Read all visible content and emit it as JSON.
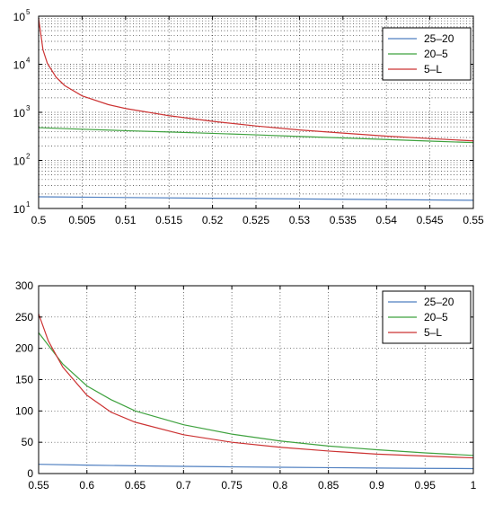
{
  "chart_data": [
    {
      "type": "line",
      "yscale": "log",
      "xlim": [
        0.5,
        0.55
      ],
      "ylim": [
        10,
        100000
      ],
      "grid": true,
      "grid_style": "dotted",
      "legend_position": "top-right",
      "x_ticks": [
        "0.5",
        "0.505",
        "0.51",
        "0.515",
        "0.52",
        "0.525",
        "0.53",
        "0.535",
        "0.54",
        "0.545",
        "0.55"
      ],
      "y_ticks": [
        {
          "value": 10,
          "base": "10",
          "exp": "1"
        },
        {
          "value": 100,
          "base": "10",
          "exp": "2"
        },
        {
          "value": 1000,
          "base": "10",
          "exp": "3"
        },
        {
          "value": 10000,
          "base": "10",
          "exp": "4"
        },
        {
          "value": 100000,
          "base": "10",
          "exp": "5"
        }
      ],
      "series": [
        {
          "name": "25–20",
          "color": "#4f7fc0",
          "x": [
            0.5,
            0.51,
            0.52,
            0.53,
            0.54,
            0.55
          ],
          "y": [
            17.5,
            16.9,
            16.3,
            15.8,
            15.3,
            14.8
          ]
        },
        {
          "name": "20–5",
          "color": "#3fa23f",
          "x": [
            0.5,
            0.505,
            0.51,
            0.515,
            0.52,
            0.525,
            0.53,
            0.535,
            0.54,
            0.545,
            0.55
          ],
          "y": [
            480,
            445,
            415,
            390,
            365,
            340,
            315,
            293,
            272,
            252,
            235
          ]
        },
        {
          "name": "5–L",
          "color": "#cc3333",
          "x": [
            0.5,
            0.5005,
            0.501,
            0.502,
            0.503,
            0.505,
            0.508,
            0.51,
            0.515,
            0.52,
            0.525,
            0.53,
            0.535,
            0.54,
            0.545,
            0.55
          ],
          "y": [
            90000,
            20000,
            10500,
            5400,
            3600,
            2200,
            1450,
            1200,
            850,
            650,
            520,
            430,
            370,
            320,
            285,
            255
          ]
        }
      ]
    },
    {
      "type": "line",
      "yscale": "linear",
      "xlim": [
        0.55,
        1
      ],
      "ylim": [
        0,
        300
      ],
      "grid": true,
      "grid_style": "dotted",
      "legend_position": "top-right",
      "x_ticks": [
        "0.55",
        "0.6",
        "0.65",
        "0.7",
        "0.75",
        "0.8",
        "0.85",
        "0.9",
        "0.95",
        "1"
      ],
      "y_ticks": [
        "0",
        "50",
        "100",
        "150",
        "200",
        "250",
        "300"
      ],
      "series": [
        {
          "name": "25–20",
          "color": "#4f7fc0",
          "x": [
            0.55,
            0.6,
            0.65,
            0.7,
            0.75,
            0.8,
            0.85,
            0.9,
            0.95,
            1.0
          ],
          "y": [
            14.8,
            13.5,
            12.4,
            11.5,
            10.7,
            10.0,
            9.4,
            8.8,
            8.3,
            7.9
          ]
        },
        {
          "name": "20–5",
          "color": "#3fa23f",
          "x": [
            0.55,
            0.575,
            0.6,
            0.625,
            0.65,
            0.7,
            0.75,
            0.8,
            0.85,
            0.9,
            0.95,
            1.0
          ],
          "y": [
            225,
            175,
            140,
            118,
            100,
            78,
            63,
            52,
            44,
            38,
            33,
            29
          ]
        },
        {
          "name": "5–L",
          "color": "#cc3333",
          "x": [
            0.55,
            0.56,
            0.575,
            0.6,
            0.625,
            0.65,
            0.7,
            0.75,
            0.8,
            0.85,
            0.9,
            0.95,
            1.0
          ],
          "y": [
            255,
            212,
            170,
            125,
            98,
            82,
            62,
            50,
            42,
            36,
            31,
            28,
            25
          ]
        }
      ]
    }
  ]
}
